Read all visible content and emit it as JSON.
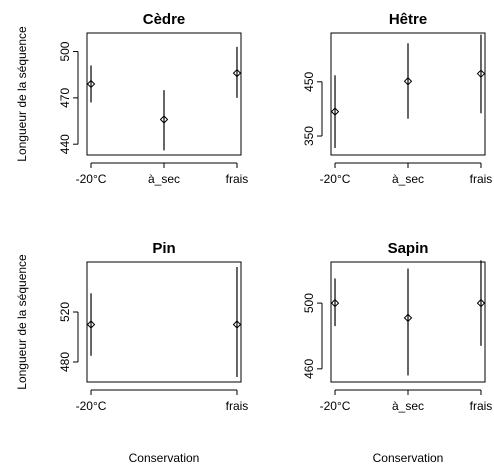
{
  "chart_data": [
    {
      "type": "scatter",
      "title": "Cèdre",
      "xlabel": "",
      "ylabel": "Longueur de la séquence",
      "categories": [
        "-20°C",
        "à_sec",
        "frais"
      ],
      "y_ticks": [
        440,
        470,
        500
      ],
      "ylim": [
        433,
        512
      ],
      "points": [
        {
          "x": "-20°C",
          "y": 479,
          "low": 467,
          "high": 491
        },
        {
          "x": "à_sec",
          "y": 456,
          "low": 436,
          "high": 475
        },
        {
          "x": "frais",
          "y": 486,
          "low": 470,
          "high": 503
        }
      ]
    },
    {
      "type": "scatter",
      "title": "Hêtre",
      "xlabel": "",
      "ylabel": "",
      "categories": [
        "-20°C",
        "à_sec",
        "frais"
      ],
      "y_ticks": [
        350,
        450
      ],
      "ylim": [
        315,
        540
      ],
      "points": [
        {
          "x": "-20°C",
          "y": 395,
          "low": 328,
          "high": 462
        },
        {
          "x": "à_sec",
          "y": 451,
          "low": 382,
          "high": 521
        },
        {
          "x": "frais",
          "y": 465,
          "low": 392,
          "high": 537
        }
      ]
    },
    {
      "type": "scatter",
      "title": "Pin",
      "xlabel": "Conservation",
      "ylabel": "Longueur de la séquence",
      "categories": [
        "-20°C",
        "frais"
      ],
      "y_ticks": [
        480,
        520
      ],
      "ylim": [
        464,
        560
      ],
      "points": [
        {
          "x": "-20°C",
          "y": 510,
          "low": 485,
          "high": 535
        },
        {
          "x": "frais",
          "y": 510,
          "low": 468,
          "high": 556
        }
      ]
    },
    {
      "type": "scatter",
      "title": "Sapin",
      "xlabel": "Conservation",
      "ylabel": "",
      "categories": [
        "-20°C",
        "à_sec",
        "frais"
      ],
      "y_ticks": [
        460,
        500
      ],
      "ylim": [
        452,
        525
      ],
      "points": [
        {
          "x": "-20°C",
          "y": 500,
          "low": 486,
          "high": 515
        },
        {
          "x": "à_sec",
          "y": 491,
          "low": 456,
          "high": 521
        },
        {
          "x": "frais",
          "y": 500,
          "low": 474,
          "high": 526
        }
      ]
    }
  ]
}
